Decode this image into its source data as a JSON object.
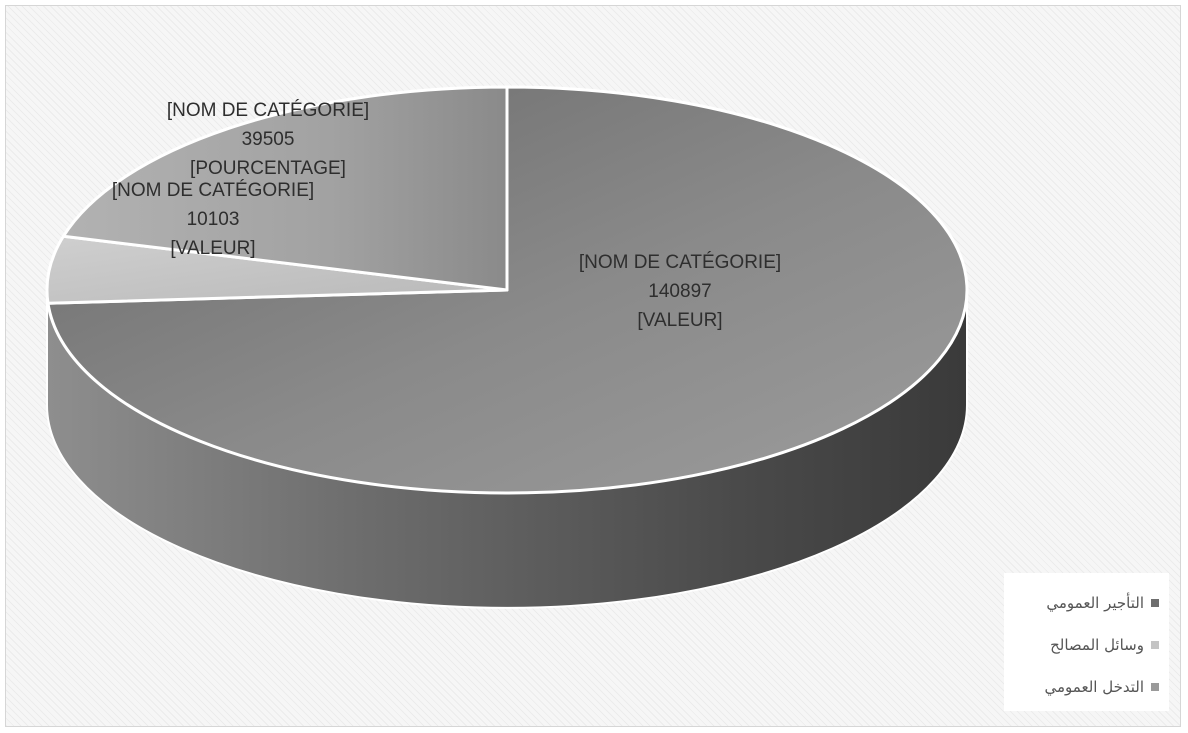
{
  "chart_data": {
    "type": "pie",
    "style": "3d",
    "categories": [
      "التأجير العمومي",
      "وسائل المصالح",
      "التدخل العمومي"
    ],
    "values": [
      140897,
      10103,
      39505
    ],
    "slices": [
      {
        "name": "التأجير العمومي",
        "value": 140897,
        "color": "#7a7a7a",
        "label_lines": [
          "[NOM DE CATÉGORIE]",
          "140897",
          "[VALEUR]"
        ]
      },
      {
        "name": "وسائل المصالح",
        "value": 10103,
        "color": "#c4c4c4",
        "label_lines": [
          "[NOM DE CATÉGORIE]",
          "10103",
          "[VALEUR]"
        ]
      },
      {
        "name": "التدخل العمومي",
        "value": 39505,
        "color": "#a4a4a4",
        "label_lines": [
          "[NOM DE CATÉGORIE]",
          "39505",
          "[POURCENTAGE]"
        ]
      }
    ],
    "legend": {
      "position": "bottom-right",
      "items": [
        {
          "label": "التأجير العمومي",
          "color": "#6e6e6e"
        },
        {
          "label": "وسائل المصالح",
          "color": "#c4c4c4"
        },
        {
          "label": "التدخل العمومي",
          "color": "#9a9a9a"
        }
      ]
    }
  }
}
